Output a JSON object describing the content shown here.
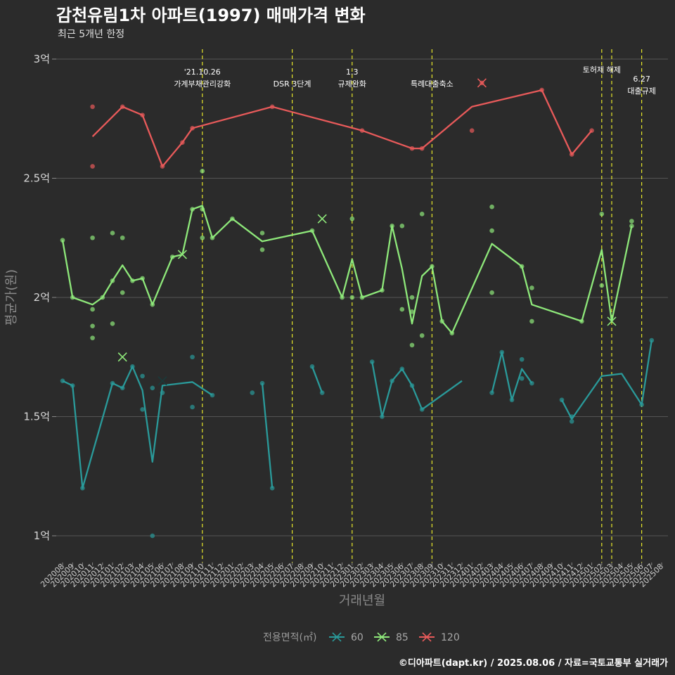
{
  "header": {
    "title": "감천유림1차 아파트(1997) 매매가격 변화",
    "subtitle": "최근 5개년 한정"
  },
  "caption": "©디아파트(dapt.kr) / 2025.08.06 / 자료=국토교통부 실거래가",
  "colors": {
    "background": "#2b2b2b",
    "grid": "#555555",
    "vline": "#e8e82a",
    "s60": "#2a9a9a",
    "s85": "#8ee87a",
    "s120": "#e85a5a"
  },
  "chart_data": {
    "type": "line",
    "xlabel": "거래년월",
    "ylabel": "평균가(원)",
    "ylim": [
      0.9,
      3.05
    ],
    "yticks": [
      {
        "v": 1.0,
        "label": "1억"
      },
      {
        "v": 1.5,
        "label": "1.5억"
      },
      {
        "v": 2.0,
        "label": "2억"
      },
      {
        "v": 2.5,
        "label": "2.5억"
      },
      {
        "v": 3.0,
        "label": "3억"
      }
    ],
    "categories": [
      "202008",
      "202009",
      "202010",
      "202011",
      "202012",
      "202101",
      "202102",
      "202103",
      "202104",
      "202105",
      "202106",
      "202107",
      "202108",
      "202109",
      "202110",
      "202111",
      "202112",
      "202201",
      "202202",
      "202203",
      "202204",
      "202205",
      "202206",
      "202207",
      "202208",
      "202209",
      "202210",
      "202211",
      "202212",
      "202301",
      "202302",
      "202303",
      "202304",
      "202305",
      "202306",
      "202307",
      "202308",
      "202309",
      "202310",
      "202311",
      "202312",
      "202401",
      "202402",
      "202403",
      "202404",
      "202405",
      "202406",
      "202407",
      "202408",
      "202409",
      "202410",
      "202411",
      "202412",
      "202501",
      "202502",
      "202503",
      "202504",
      "202505",
      "202506",
      "202507",
      "202508"
    ],
    "legend": {
      "title": "전용면적(㎡)",
      "placement": "bottom"
    },
    "series": [
      {
        "name": "60",
        "color": "#2a9a9a",
        "line": [
          [
            [
              "202008",
              1.65
            ],
            [
              "202009",
              1.63
            ],
            [
              "202010",
              1.2
            ],
            [
              "202101",
              1.64
            ],
            [
              "202102",
              1.62
            ],
            [
              "202103",
              1.71
            ],
            [
              "202104",
              1.61
            ],
            [
              "202105",
              1.31
            ],
            [
              "202106",
              1.63
            ],
            [
              "202109",
              1.645
            ],
            [
              "202111",
              1.59
            ]
          ],
          [
            [
              "202204",
              1.64
            ],
            [
              "202205",
              1.2
            ]
          ],
          [
            [
              "202209",
              1.71
            ],
            [
              "202210",
              1.6
            ]
          ],
          [
            [
              "202303",
              1.73
            ],
            [
              "202304",
              1.5
            ],
            [
              "202305",
              1.65
            ],
            [
              "202306",
              1.7
            ],
            [
              "202307",
              1.63
            ],
            [
              "202308",
              1.53
            ],
            [
              "202312",
              1.65
            ]
          ],
          [
            [
              "202403",
              1.6
            ],
            [
              "202404",
              1.77
            ],
            [
              "202405",
              1.57
            ],
            [
              "202406",
              1.7
            ],
            [
              "202407",
              1.64
            ]
          ],
          [
            [
              "202410",
              1.57
            ],
            [
              "202411",
              1.49
            ],
            [
              "202502",
              1.67
            ],
            [
              "202504",
              1.68
            ],
            [
              "202506",
              1.55
            ],
            [
              "202507",
              1.82
            ]
          ]
        ],
        "points": [
          [
            "202008",
            1.65
          ],
          [
            "202009",
            1.63
          ],
          [
            "202010",
            1.2
          ],
          [
            "202101",
            1.64
          ],
          [
            "202102",
            1.62
          ],
          [
            "202103",
            1.71
          ],
          [
            "202104",
            1.67
          ],
          [
            "202104",
            1.53
          ],
          [
            "202105",
            1.62
          ],
          [
            "202105",
            1.0
          ],
          [
            "202106",
            1.6
          ],
          [
            "202109",
            1.75
          ],
          [
            "202109",
            1.54
          ],
          [
            "202111",
            1.59
          ],
          [
            "202203",
            1.6
          ],
          [
            "202204",
            1.64
          ],
          [
            "202205",
            1.2
          ],
          [
            "202209",
            1.71
          ],
          [
            "202210",
            1.6
          ],
          [
            "202303",
            1.73
          ],
          [
            "202304",
            1.5
          ],
          [
            "202305",
            1.65
          ],
          [
            "202306",
            1.7
          ],
          [
            "202307",
            1.63
          ],
          [
            "202308",
            1.53
          ],
          [
            "202403",
            1.6
          ],
          [
            "202404",
            1.77
          ],
          [
            "202405",
            1.57
          ],
          [
            "202406",
            1.74
          ],
          [
            "202406",
            1.66
          ],
          [
            "202407",
            1.64
          ],
          [
            "202410",
            1.57
          ],
          [
            "202411",
            1.48
          ],
          [
            "202411",
            1.5
          ],
          [
            "202506",
            1.55
          ],
          [
            "202507",
            1.82
          ]
        ],
        "crosses": [
          [
            "202106",
            1.65
          ]
        ]
      },
      {
        "name": "85",
        "color": "#8ee87a",
        "line": [
          [
            [
              "202008",
              2.24
            ],
            [
              "202009",
              2.0
            ],
            [
              "202011",
              1.97
            ],
            [
              "202012",
              2.0
            ],
            [
              "202101",
              2.07
            ],
            [
              "202102",
              2.135
            ],
            [
              "202103",
              2.07
            ],
            [
              "202104",
              2.08
            ],
            [
              "202105",
              1.97
            ],
            [
              "202107",
              2.17
            ],
            [
              "202108",
              2.18
            ],
            [
              "202109",
              2.37
            ],
            [
              "202110",
              2.385
            ],
            [
              "202111",
              2.25
            ],
            [
              "202201",
              2.33
            ],
            [
              "202204",
              2.235
            ],
            [
              "202209",
              2.28
            ],
            [
              "202212",
              2.0
            ],
            [
              "202301",
              2.16
            ],
            [
              "202302",
              2.0
            ],
            [
              "202304",
              2.03
            ],
            [
              "202305",
              2.3
            ],
            [
              "202306",
              2.12
            ],
            [
              "202307",
              1.89
            ],
            [
              "202308",
              2.09
            ],
            [
              "202309",
              2.13
            ],
            [
              "202310",
              1.9
            ],
            [
              "202311",
              1.85
            ],
            [
              "202403",
              2.225
            ],
            [
              "202406",
              2.13
            ],
            [
              "202407",
              1.97
            ],
            [
              "202412",
              1.9
            ],
            [
              "202502",
              2.2
            ],
            [
              "202503",
              1.9
            ],
            [
              "202505",
              2.3
            ]
          ]
        ],
        "points": [
          [
            "202008",
            2.24
          ],
          [
            "202009",
            2.0
          ],
          [
            "202011",
            2.25
          ],
          [
            "202011",
            1.95
          ],
          [
            "202011",
            1.88
          ],
          [
            "202011",
            1.83
          ],
          [
            "202012",
            2.0
          ],
          [
            "202101",
            2.27
          ],
          [
            "202101",
            2.07
          ],
          [
            "202101",
            1.89
          ],
          [
            "202102",
            2.25
          ],
          [
            "202102",
            2.02
          ],
          [
            "202103",
            2.07
          ],
          [
            "202104",
            2.08
          ],
          [
            "202105",
            1.97
          ],
          [
            "202107",
            2.17
          ],
          [
            "202109",
            2.37
          ],
          [
            "202110",
            2.53
          ],
          [
            "202110",
            2.37
          ],
          [
            "202110",
            2.25
          ],
          [
            "202111",
            2.25
          ],
          [
            "202201",
            2.33
          ],
          [
            "202204",
            2.27
          ],
          [
            "202204",
            2.2
          ],
          [
            "202209",
            2.28
          ],
          [
            "202212",
            2.0
          ],
          [
            "202301",
            2.33
          ],
          [
            "202301",
            2.0
          ],
          [
            "202302",
            2.0
          ],
          [
            "202304",
            2.03
          ],
          [
            "202305",
            2.3
          ],
          [
            "202306",
            2.3
          ],
          [
            "202306",
            1.95
          ],
          [
            "202307",
            2.0
          ],
          [
            "202307",
            1.94
          ],
          [
            "202307",
            1.8
          ],
          [
            "202308",
            2.35
          ],
          [
            "202308",
            1.84
          ],
          [
            "202309",
            2.13
          ],
          [
            "202310",
            1.9
          ],
          [
            "202311",
            1.85
          ],
          [
            "202403",
            2.38
          ],
          [
            "202403",
            2.28
          ],
          [
            "202403",
            2.02
          ],
          [
            "202406",
            2.13
          ],
          [
            "202407",
            2.04
          ],
          [
            "202407",
            1.9
          ],
          [
            "202412",
            1.9
          ],
          [
            "202502",
            2.35
          ],
          [
            "202502",
            2.05
          ],
          [
            "202505",
            2.32
          ],
          [
            "202505",
            2.3
          ]
        ],
        "crosses": [
          [
            "202102",
            1.75
          ],
          [
            "202108",
            2.18
          ],
          [
            "202210",
            2.33
          ],
          [
            "202503",
            1.9
          ]
        ]
      },
      {
        "name": "120",
        "color": "#e85a5a",
        "line": [
          [
            [
              "202011",
              2.675
            ],
            [
              "202102",
              2.8
            ],
            [
              "202104",
              2.765
            ],
            [
              "202106",
              2.55
            ],
            [
              "202108",
              2.65
            ],
            [
              "202109",
              2.71
            ],
            [
              "202205",
              2.8
            ],
            [
              "202302",
              2.7
            ],
            [
              "202307",
              2.625
            ],
            [
              "202308",
              2.625
            ],
            [
              "202401",
              2.8
            ],
            [
              "202408",
              2.87
            ],
            [
              "202411",
              2.6
            ],
            [
              "202501",
              2.7
            ]
          ]
        ],
        "points": [
          [
            "202011",
            2.8
          ],
          [
            "202011",
            2.55
          ],
          [
            "202102",
            2.8
          ],
          [
            "202104",
            2.765
          ],
          [
            "202106",
            2.55
          ],
          [
            "202108",
            2.65
          ],
          [
            "202109",
            2.71
          ],
          [
            "202205",
            2.8
          ],
          [
            "202302",
            2.7
          ],
          [
            "202307",
            2.625
          ],
          [
            "202308",
            2.625
          ],
          [
            "202401",
            2.7
          ],
          [
            "202408",
            2.87
          ],
          [
            "202411",
            2.6
          ],
          [
            "202501",
            2.7
          ]
        ],
        "crosses": [
          [
            "202402",
            2.9
          ]
        ]
      }
    ],
    "vlines": [
      {
        "x": "202110",
        "lines": [
          "'21.10.26",
          "가계부채관리강화"
        ]
      },
      {
        "x": "202207",
        "lines": [
          "",
          "DSR 3단계"
        ]
      },
      {
        "x": "202301",
        "lines": [
          "1.3",
          "규제완화"
        ]
      },
      {
        "x": "202309",
        "lines": [
          "",
          "특례대출축소"
        ]
      },
      {
        "x": "202502",
        "lines": [
          "토허제 해제"
        ]
      },
      {
        "x": "202503",
        "lines": []
      },
      {
        "x": "202506",
        "lines": [
          "6.27",
          "대출규제"
        ]
      }
    ]
  }
}
